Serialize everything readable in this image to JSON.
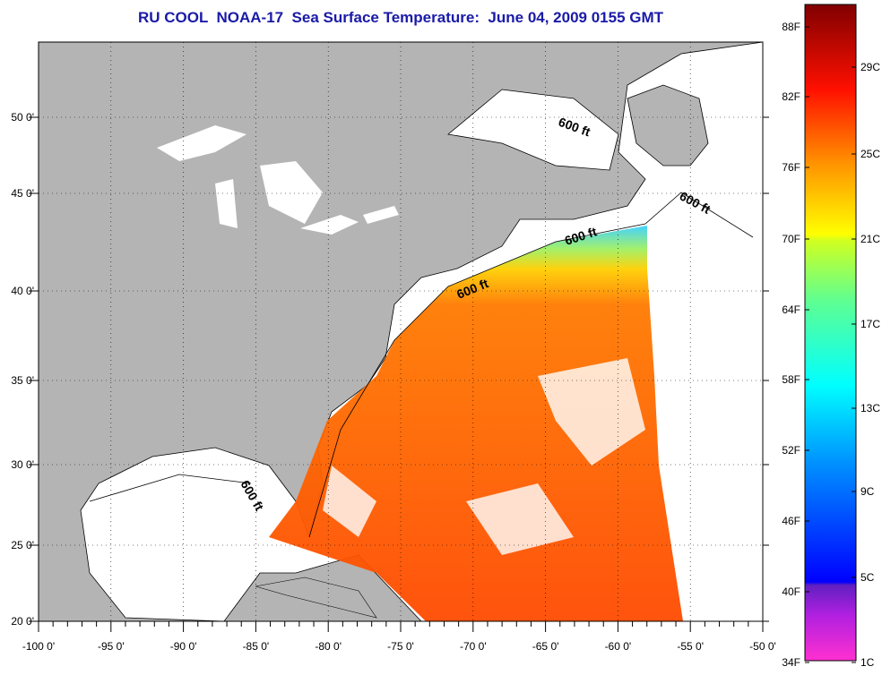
{
  "title": "RU COOL  NOAA-17  Sea Surface Temperature:  June 04, 2009 0155 GMT",
  "map": {
    "lon_labels": [
      "-100 0'",
      "-95 0'",
      "-90 0'",
      "-85 0'",
      "-80 0'",
      "-75 0'",
      "-70 0'",
      "-65 0'",
      "-60 0'",
      "-55 0'",
      "-50 0'"
    ],
    "lat_labels": [
      "50 0'",
      "45 0'",
      "40 0'",
      "35 0'",
      "30 0'",
      "25 0'",
      "20 0'"
    ],
    "lon_range": [
      -100,
      -50
    ],
    "lat_range": [
      20,
      52.5
    ],
    "contour_labels": [
      "600 ft",
      "600 ft",
      "600 ft",
      "600 ft",
      "600 ft"
    ],
    "colors": {
      "land": "#b4b4b4",
      "no_data": "#ffffff",
      "grid": "#000000"
    }
  },
  "colorbar": {
    "fahrenheit_labels": [
      "88F",
      "82F",
      "76F",
      "70F",
      "64F",
      "58F",
      "52F",
      "46F",
      "40F",
      "34F"
    ],
    "celsius_labels": [
      "29C",
      "25C",
      "21C",
      "17C",
      "13C",
      "9C",
      "5C",
      "1C"
    ],
    "range_c": [
      1,
      32
    ]
  }
}
